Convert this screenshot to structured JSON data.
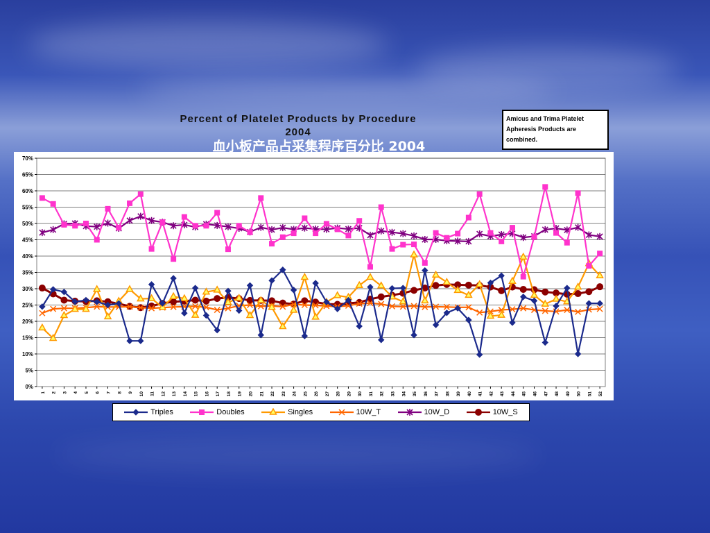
{
  "slide": {
    "title": "血小板产品占采集程序百分比 2004"
  },
  "note": "Amicus and Trima Platelet Apheresis Products are combined.",
  "chart_data": {
    "type": "line",
    "title": "Percent of Platelet Products by Procedure",
    "subtitle": "2004",
    "xlabel": "",
    "ylabel": "",
    "ylim": [
      0,
      70
    ],
    "y_ticks": [
      "0%",
      "5%",
      "10%",
      "15%",
      "20%",
      "25%",
      "30%",
      "35%",
      "40%",
      "45%",
      "50%",
      "55%",
      "60%",
      "65%",
      "70%"
    ],
    "grid": true,
    "legend_position": "bottom",
    "x": [
      1,
      2,
      3,
      4,
      5,
      6,
      7,
      8,
      9,
      10,
      11,
      12,
      13,
      14,
      15,
      16,
      17,
      18,
      19,
      20,
      21,
      22,
      23,
      24,
      25,
      26,
      27,
      28,
      29,
      30,
      31,
      32,
      33,
      34,
      35,
      36,
      37,
      38,
      39,
      40,
      41,
      42,
      43,
      44,
      45,
      46,
      47,
      48,
      49,
      50,
      51,
      52
    ],
    "series": [
      {
        "name": "Triples",
        "color": "#1b2a8c",
        "marker": "diamond",
        "values": [
          24.5,
          29.8,
          29,
          26,
          26.5,
          26,
          25,
          25.5,
          14,
          14,
          31.3,
          25.5,
          33.2,
          22.5,
          30.2,
          21.8,
          17.3,
          29.3,
          23.3,
          31,
          15.8,
          32.5,
          35.8,
          29.6,
          15.5,
          31.7,
          25.9,
          23.8,
          26.5,
          18.5,
          30.5,
          14.3,
          30.1,
          30.2,
          15.8,
          35.6,
          18.9,
          22.6,
          24,
          20.4,
          9.8,
          31.8,
          34,
          19.6,
          27.5,
          26.3,
          13.5,
          24.7,
          30.2,
          10,
          25.5,
          25.5
        ]
      },
      {
        "name": "Doubles",
        "color": "#ff33cc",
        "marker": "square",
        "values": [
          57.8,
          56,
          49.6,
          49.3,
          50,
          45,
          54.5,
          48.7,
          56.2,
          59,
          42.2,
          50.4,
          39.1,
          52,
          49.3,
          49.3,
          53.3,
          42.1,
          49.3,
          47.3,
          57.8,
          43.8,
          45.8,
          47,
          51.6,
          47,
          49.9,
          48.2,
          46.3,
          50.8,
          36.7,
          55,
          42.2,
          43.5,
          43.6,
          37.9,
          47.1,
          45.6,
          46.9,
          51.8,
          59,
          47.1,
          44.5,
          48.7,
          33.7,
          45.9,
          61.2,
          47.1,
          44.1,
          59.3,
          37,
          40.8
        ]
      },
      {
        "name": "Singles",
        "color": "#ff9900",
        "marker": "triangle",
        "values": [
          18,
          14.8,
          21.8,
          23.7,
          23.7,
          29.8,
          21.4,
          26.2,
          29.8,
          26.9,
          27,
          24.3,
          27.6,
          27,
          21.9,
          29,
          29.6,
          25.8,
          27.1,
          21.8,
          26.4,
          24.3,
          18.4,
          23.4,
          33.5,
          21.3,
          25.9,
          27.9,
          27.4,
          31,
          33.5,
          30.9,
          27.5,
          26,
          40.4,
          26.3,
          34.2,
          32,
          29.5,
          28,
          31.3,
          21.6,
          21.9,
          32.3,
          39.7,
          28,
          25.3,
          26.8,
          26,
          30.5,
          37.7,
          34
        ]
      },
      {
        "name": "10W_T",
        "color": "#ff6600",
        "marker": "x",
        "values": [
          22.5,
          23.8,
          24,
          24,
          24.2,
          24.5,
          24.4,
          24.4,
          24.5,
          24.2,
          24,
          24.2,
          24.4,
          24.5,
          24.6,
          24.3,
          23.5,
          24,
          24.8,
          25,
          24.6,
          24.7,
          24.5,
          25.2,
          25,
          24.9,
          24.7,
          24.5,
          24.8,
          25.4,
          25.6,
          25.3,
          24.6,
          24.5,
          24.7,
          24.4,
          24.5,
          24.4,
          24.3,
          24.3,
          22.7,
          23,
          23.5,
          23.7,
          24,
          23.5,
          23.2,
          23,
          23.5,
          22.9,
          23.6,
          23.8
        ]
      },
      {
        "name": "10W_D",
        "color": "#800080",
        "marker": "star",
        "values": [
          47.2,
          48.1,
          49.9,
          50,
          49.2,
          49,
          50.1,
          48.5,
          50.9,
          52.2,
          50.9,
          50.4,
          49.3,
          49.6,
          48.9,
          49.8,
          49.4,
          49,
          48.5,
          47.4,
          48.8,
          48.1,
          48.7,
          48.2,
          48.6,
          48.3,
          48.2,
          48.6,
          48.3,
          48.6,
          46.4,
          47.7,
          47.3,
          46.9,
          46.2,
          45.1,
          45.1,
          44.7,
          44.6,
          44.5,
          46.8,
          46.1,
          46.6,
          46.9,
          45.7,
          46.1,
          48.1,
          48.5,
          48,
          48.8,
          46.5,
          46
        ]
      },
      {
        "name": "10W_S",
        "color": "#8b0000",
        "marker": "circle",
        "values": [
          30.2,
          28.4,
          26.5,
          26.2,
          26.1,
          26.3,
          26,
          25.4,
          24.6,
          24.2,
          24.7,
          25.5,
          26,
          26.2,
          26.5,
          26.2,
          27,
          27.3,
          27,
          26.4,
          26.4,
          26.3,
          25.6,
          25.3,
          26.3,
          25.9,
          25.3,
          25.2,
          25.5,
          25.8,
          26.8,
          27.5,
          28,
          28.6,
          29.5,
          30.2,
          31,
          31.3,
          31.2,
          31.1,
          31,
          30.5,
          29.4,
          30.5,
          29.8,
          29.7,
          29,
          28.7,
          28.3,
          28.5,
          29.1,
          30.6
        ]
      }
    ]
  }
}
